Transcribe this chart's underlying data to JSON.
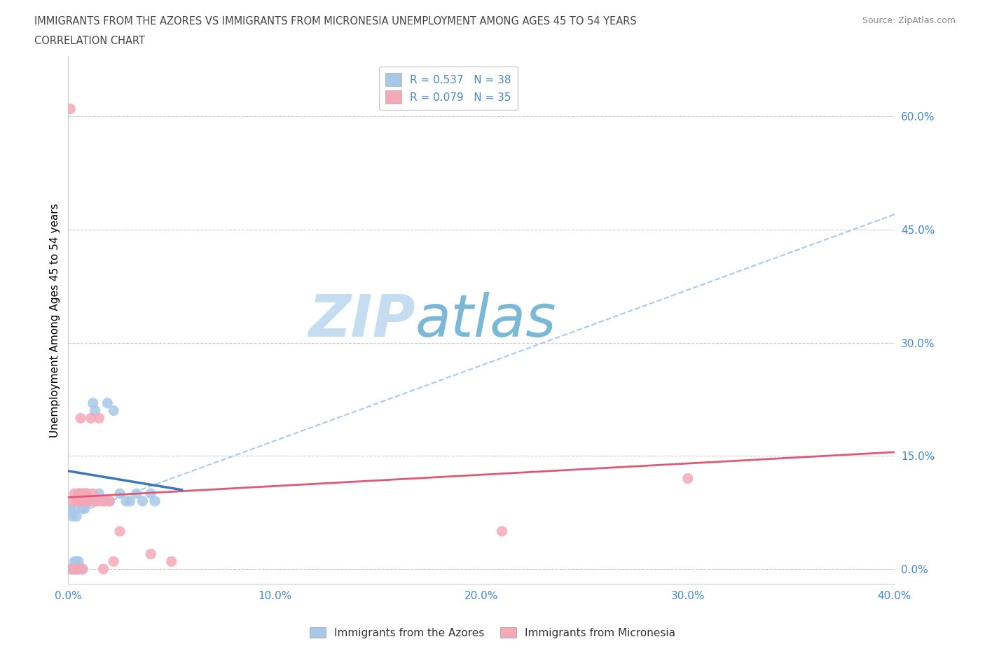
{
  "title_line1": "IMMIGRANTS FROM THE AZORES VS IMMIGRANTS FROM MICRONESIA UNEMPLOYMENT AMONG AGES 45 TO 54 YEARS",
  "title_line2": "CORRELATION CHART",
  "source": "Source: ZipAtlas.com",
  "ylabel": "Unemployment Among Ages 45 to 54 years",
  "xlim": [
    0.0,
    0.4
  ],
  "ylim": [
    -0.02,
    0.68
  ],
  "yticks": [
    0.0,
    0.15,
    0.3,
    0.45,
    0.6
  ],
  "xticks": [
    0.0,
    0.1,
    0.2,
    0.3,
    0.4
  ],
  "azores_R": 0.537,
  "azores_N": 38,
  "micronesia_R": 0.079,
  "micronesia_N": 35,
  "azores_color": "#a8c8e8",
  "micronesia_color": "#f4a8b8",
  "azores_line_color": "#3a78b8",
  "micronesia_line_color": "#e05878",
  "dashed_line_color": "#aac8e8",
  "watermark_color": "#cce0f0",
  "legend_label_azores": "Immigrants from the Azores",
  "legend_label_micronesia": "Immigrants from Micronesia",
  "azores_x": [
    0.001,
    0.001,
    0.002,
    0.002,
    0.003,
    0.003,
    0.003,
    0.003,
    0.004,
    0.004,
    0.004,
    0.004,
    0.005,
    0.005,
    0.005,
    0.005,
    0.006,
    0.006,
    0.007,
    0.007,
    0.008,
    0.009,
    0.01,
    0.011,
    0.012,
    0.013,
    0.015,
    0.017,
    0.019,
    0.02,
    0.022,
    0.025,
    0.028,
    0.03,
    0.033,
    0.036,
    0.04,
    0.042
  ],
  "azores_y": [
    0.0,
    0.08,
    0.0,
    0.07,
    0.0,
    0.0,
    0.01,
    0.08,
    0.0,
    0.0,
    0.01,
    0.07,
    0.0,
    0.0,
    0.01,
    0.1,
    0.0,
    0.09,
    0.0,
    0.08,
    0.08,
    0.1,
    0.09,
    0.09,
    0.22,
    0.21,
    0.1,
    0.09,
    0.22,
    0.09,
    0.21,
    0.1,
    0.09,
    0.09,
    0.1,
    0.09,
    0.1,
    0.09
  ],
  "micronesia_x": [
    0.001,
    0.002,
    0.002,
    0.003,
    0.003,
    0.004,
    0.004,
    0.005,
    0.005,
    0.005,
    0.006,
    0.006,
    0.006,
    0.007,
    0.007,
    0.008,
    0.008,
    0.009,
    0.009,
    0.01,
    0.011,
    0.012,
    0.013,
    0.014,
    0.015,
    0.016,
    0.017,
    0.018,
    0.02,
    0.022,
    0.025,
    0.04,
    0.05,
    0.21,
    0.3
  ],
  "micronesia_y": [
    0.61,
    0.0,
    0.09,
    0.0,
    0.1,
    0.0,
    0.09,
    0.1,
    0.09,
    0.0,
    0.09,
    0.1,
    0.2,
    0.0,
    0.1,
    0.09,
    0.1,
    0.09,
    0.1,
    0.09,
    0.2,
    0.1,
    0.09,
    0.09,
    0.2,
    0.09,
    0.0,
    0.09,
    0.09,
    0.01,
    0.05,
    0.02,
    0.01,
    0.05,
    0.12
  ],
  "blue_trend_x0": 0.0,
  "blue_trend_y0": 0.13,
  "blue_trend_x1": 0.055,
  "blue_trend_y1": 0.105,
  "pink_trend_x0": 0.0,
  "pink_trend_y0": 0.095,
  "pink_trend_x1": 0.4,
  "pink_trend_y1": 0.155,
  "dash_trend_x0": 0.0,
  "dash_trend_y0": 0.07,
  "dash_trend_x1": 0.4,
  "dash_trend_y1": 0.47
}
